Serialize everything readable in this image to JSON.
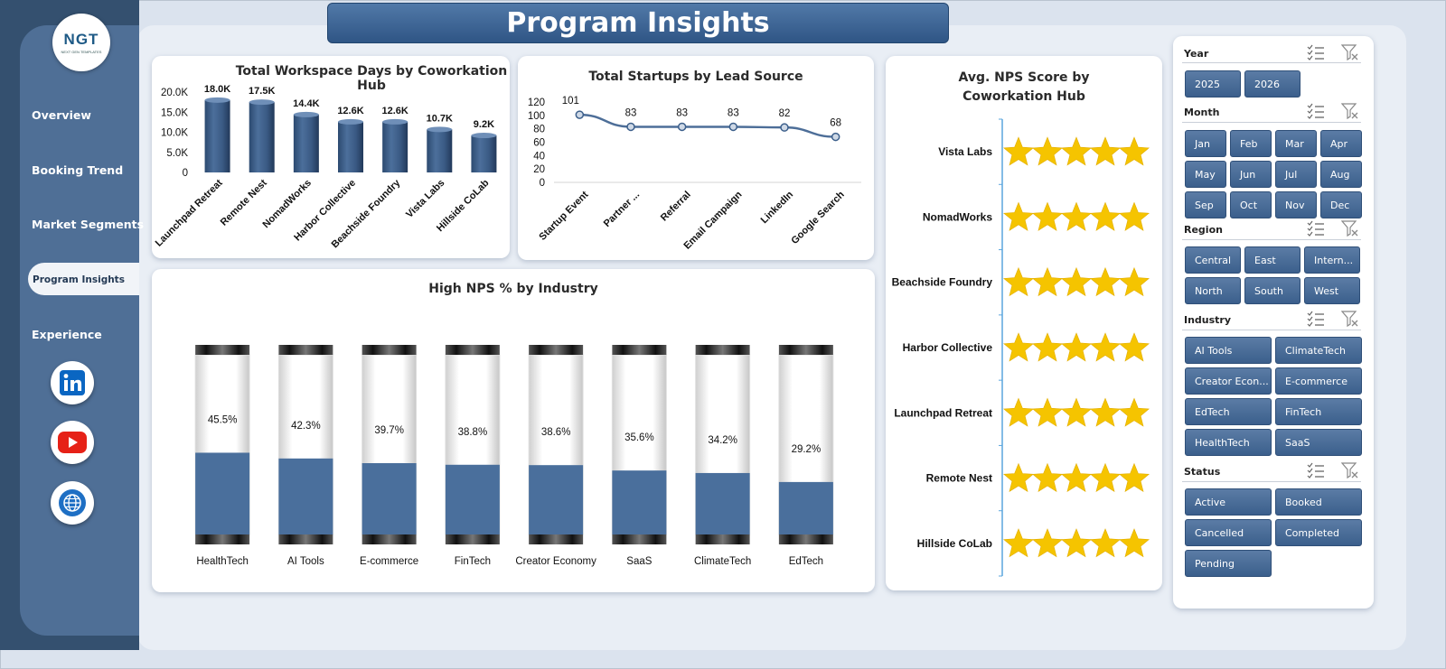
{
  "app": {
    "title": "Program Insights",
    "logo_text": "NGT",
    "logo_subtext": "NEXT GEN TEMPLATES"
  },
  "sidebar": {
    "items": [
      {
        "label": "Overview"
      },
      {
        "label": "Booking Trend"
      },
      {
        "label": "Market Segments"
      },
      {
        "label": "Program  Insights",
        "active": true
      },
      {
        "label": "Experience"
      }
    ],
    "social": [
      {
        "icon": "linkedin-icon",
        "color": "#0a66c2"
      },
      {
        "icon": "youtube-icon",
        "color": "#e62117"
      },
      {
        "icon": "globe-icon",
        "color": "#1e6fc4"
      }
    ]
  },
  "charts": {
    "workspace": {
      "title": "Total Workspace Days by Coworkation Hub",
      "chart_data": {
        "type": "bar",
        "categories": [
          "Launchpad Retreat",
          "Remote Nest",
          "NomadWorks",
          "Harbor Collective",
          "Beachside Foundry",
          "Vista Labs",
          "Hillside CoLab"
        ],
        "values": [
          18000,
          17500,
          14400,
          12600,
          12600,
          10700,
          9200
        ],
        "value_labels": [
          "18.0K",
          "17.5K",
          "14.4K",
          "12.6K",
          "12.6K",
          "10.7K",
          "9.2K"
        ],
        "yticks": [
          "0",
          "5.0K",
          "10.0K",
          "15.0K",
          "20.0K"
        ],
        "ylim": [
          0,
          20000
        ]
      }
    },
    "startups": {
      "title": "Total Startups by Lead Source",
      "chart_data": {
        "type": "line",
        "categories": [
          "Startup Event",
          "Partner ...",
          "Referral",
          "Email Campaign",
          "LinkedIn",
          "Google Search"
        ],
        "values": [
          101,
          83,
          83,
          83,
          82,
          68
        ],
        "yticks": [
          "0",
          "20",
          "40",
          "60",
          "80",
          "100",
          "120"
        ],
        "ylim": [
          0,
          120
        ]
      }
    },
    "highnps": {
      "title": "High NPS % by Industry",
      "chart_data": {
        "type": "bar",
        "categories": [
          "HealthTech",
          "AI Tools",
          "E-commerce",
          "FinTech",
          "Creator Economy",
          "SaaS",
          "ClimateTech",
          "EdTech"
        ],
        "values": [
          45.5,
          42.3,
          39.7,
          38.8,
          38.6,
          35.6,
          34.2,
          29.2
        ],
        "value_labels": [
          "45.5%",
          "42.3%",
          "39.7%",
          "38.8%",
          "38.6%",
          "35.6%",
          "34.2%",
          "29.2%"
        ],
        "ylim": [
          0,
          100
        ]
      }
    },
    "avgnps": {
      "title": "Avg. NPS Score by Coworkation Hub",
      "chart_data": {
        "type": "bar",
        "categories": [
          "Vista Labs",
          "NomadWorks",
          "Beachside Foundry",
          "Harbor Collective",
          "Launchpad Retreat",
          "Remote Nest",
          "Hillside CoLab"
        ],
        "stars": [
          5,
          5,
          5,
          5,
          5,
          5,
          5
        ],
        "max_stars": 5
      }
    }
  },
  "slicers": {
    "year": {
      "header": "Year",
      "options": [
        "2025",
        "2026"
      ]
    },
    "month": {
      "header": "Month",
      "options": [
        "Jan",
        "Feb",
        "Mar",
        "Apr",
        "May",
        "Jun",
        "Jul",
        "Aug",
        "Sep",
        "Oct",
        "Nov",
        "Dec"
      ]
    },
    "region": {
      "header": "Region",
      "options": [
        "Central",
        "East",
        "Intern...",
        "North",
        "South",
        "West"
      ]
    },
    "industry": {
      "header": "Industry",
      "options": [
        "AI Tools",
        "ClimateTech",
        "Creator Econ...",
        "E-commerce",
        "EdTech",
        "FinTech",
        "HealthTech",
        "SaaS"
      ]
    },
    "status": {
      "header": "Status",
      "options": [
        "Active",
        "Booked",
        "Cancelled",
        "Completed",
        "Pending"
      ]
    }
  },
  "colors": {
    "accent": "#4a6f9c",
    "star": "#f5c400",
    "bar_dark": "#2f4f78"
  }
}
